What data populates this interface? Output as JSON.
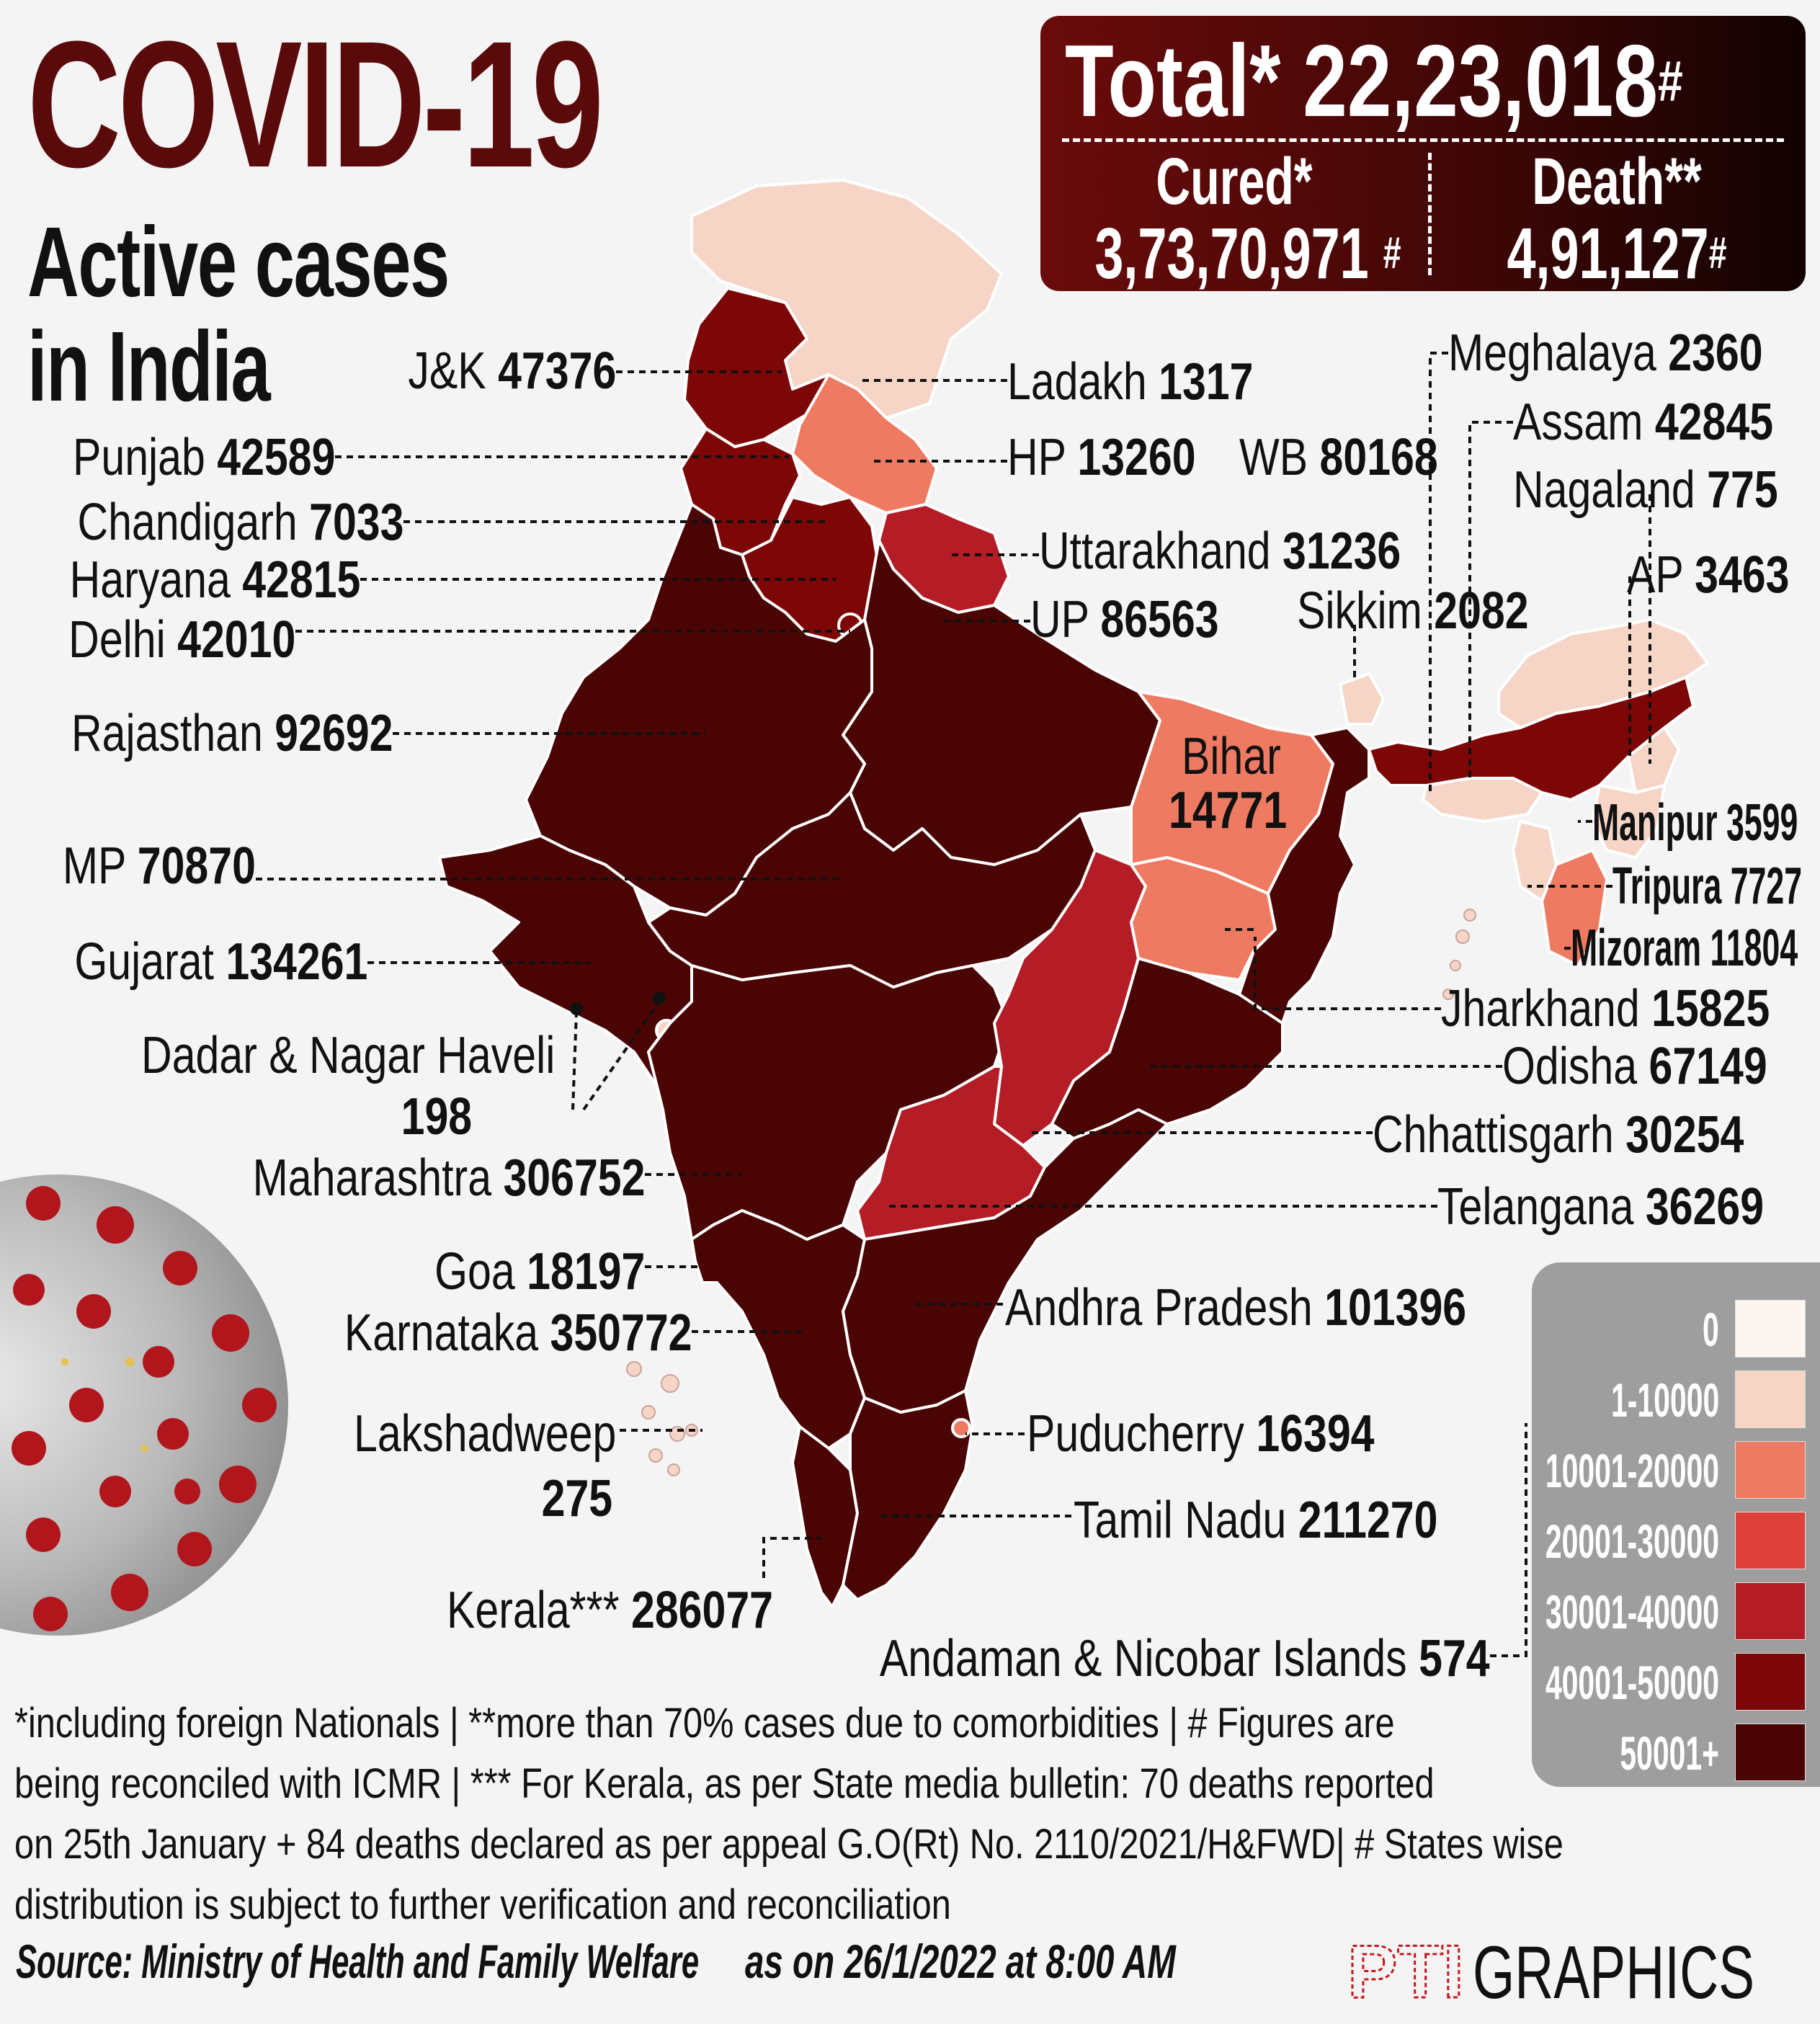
{
  "header": {
    "title": "COVID-19",
    "subtitle_line1": "Active cases",
    "subtitle_line2": "in India"
  },
  "totals": {
    "total_label": "Total*",
    "total_value": "22,23,018",
    "total_mark": "#",
    "cured_label": "Cured*",
    "cured_value": "3,73,70,971",
    "cured_mark": "#",
    "death_label": "Death**",
    "death_value": "4,91,127",
    "death_mark": "#"
  },
  "regions": [
    {
      "id": "jk",
      "name": "J&K",
      "value": "47376",
      "bucket": "40001-50000"
    },
    {
      "id": "ladakh",
      "name": "Ladakh",
      "value": "1317",
      "bucket": "1-10000"
    },
    {
      "id": "punjab",
      "name": "Punjab",
      "value": "42589",
      "bucket": "40001-50000"
    },
    {
      "id": "hp",
      "name": "HP",
      "value": "13260",
      "bucket": "10001-20000"
    },
    {
      "id": "wb",
      "name": "WB",
      "value": "80168",
      "bucket": "50001+"
    },
    {
      "id": "chandigarh",
      "name": "Chandigarh",
      "value": "7033",
      "bucket": "1-10000"
    },
    {
      "id": "haryana",
      "name": "Haryana",
      "value": "42815",
      "bucket": "40001-50000"
    },
    {
      "id": "uttarakhand",
      "name": "Uttarakhand",
      "value": "31236",
      "bucket": "30001-40000"
    },
    {
      "id": "delhi",
      "name": "Delhi",
      "value": "42010",
      "bucket": "40001-50000"
    },
    {
      "id": "up",
      "name": "UP",
      "value": "86563",
      "bucket": "50001+"
    },
    {
      "id": "rajasthan",
      "name": "Rajasthan",
      "value": "92692",
      "bucket": "50001+"
    },
    {
      "id": "mp",
      "name": "MP",
      "value": "70870",
      "bucket": "50001+"
    },
    {
      "id": "gujarat",
      "name": "Gujarat",
      "value": "134261",
      "bucket": "50001+"
    },
    {
      "id": "dnh",
      "name": "Dadar & Nagar Haveli",
      "value": "198",
      "bucket": "1-10000"
    },
    {
      "id": "maharashtra",
      "name": "Maharashtra",
      "value": "306752",
      "bucket": "50001+"
    },
    {
      "id": "goa",
      "name": "Goa",
      "value": "18197",
      "bucket": "10001-20000"
    },
    {
      "id": "karnataka",
      "name": "Karnataka",
      "value": "350772",
      "bucket": "50001+"
    },
    {
      "id": "lakshadweep",
      "name": "Lakshadweep",
      "value": "275",
      "bucket": "1-10000"
    },
    {
      "id": "kerala",
      "name": "Kerala***",
      "value": "286077",
      "bucket": "50001+"
    },
    {
      "id": "meghalaya",
      "name": "Meghalaya",
      "value": "2360",
      "bucket": "1-10000"
    },
    {
      "id": "assam",
      "name": "Assam",
      "value": "42845",
      "bucket": "40001-50000"
    },
    {
      "id": "nagaland",
      "name": "Nagaland",
      "value": "775",
      "bucket": "1-10000"
    },
    {
      "id": "ap_arunachal",
      "name": "AP",
      "value": "3463",
      "bucket": "1-10000"
    },
    {
      "id": "sikkim",
      "name": "Sikkim",
      "value": "2082",
      "bucket": "1-10000"
    },
    {
      "id": "bihar",
      "name": "Bihar",
      "value": "14771",
      "bucket": "10001-20000"
    },
    {
      "id": "manipur",
      "name": "Manipur",
      "value": "3599",
      "bucket": "1-10000"
    },
    {
      "id": "tripura",
      "name": "Tripura",
      "value": "7727",
      "bucket": "1-10000"
    },
    {
      "id": "mizoram",
      "name": "Mizoram",
      "value": "11804",
      "bucket": "10001-20000"
    },
    {
      "id": "jharkhand",
      "name": "Jharkhand",
      "value": "15825",
      "bucket": "10001-20000"
    },
    {
      "id": "odisha",
      "name": "Odisha",
      "value": "67149",
      "bucket": "50001+"
    },
    {
      "id": "chhattisgarh",
      "name": "Chhattisgarh",
      "value": "30254",
      "bucket": "30001-40000"
    },
    {
      "id": "telangana",
      "name": "Telangana",
      "value": "36269",
      "bucket": "30001-40000"
    },
    {
      "id": "andhra",
      "name": "Andhra Pradesh",
      "value": "101396",
      "bucket": "50001+"
    },
    {
      "id": "puducherry",
      "name": "Puducherry",
      "value": "16394",
      "bucket": "10001-20000"
    },
    {
      "id": "tamilnadu",
      "name": "Tamil Nadu",
      "value": "211270",
      "bucket": "50001+"
    },
    {
      "id": "andaman",
      "name": "Andaman & Nicobar Islands",
      "value": "574",
      "bucket": "1-10000"
    }
  ],
  "legend": [
    {
      "label": "0",
      "color": "#fdf5f2"
    },
    {
      "label": "1-10000",
      "color": "#f6d5c6"
    },
    {
      "label": "10001-20000",
      "color": "#ef7a62"
    },
    {
      "label": "20001-30000",
      "color": "#e0403a"
    },
    {
      "label": "30001-40000",
      "color": "#b41c26"
    },
    {
      "label": "40001-50000",
      "color": "#7d0707"
    },
    {
      "label": "50001+",
      "color": "#4a0404"
    }
  ],
  "footnotes": {
    "line1": "*including foreign Nationals | **more than 70% cases due to comorbidities | # Figures are",
    "line2": "being reconciled with ICMR  | *** For Kerala, as per State media bulletin: 70 deaths reported",
    "line3": "on 25th January + 84 deaths declared as per appeal G.O(Rt) No. 2110/2021/H&FWD| # States wise",
    "line4": "distribution is subject to further verification and reconciliation"
  },
  "source": "Source: Ministry of Health and Family Welfare",
  "as_of": "as on 26/1/2022 at 8:00 AM",
  "brand": {
    "logo_text": "PTI",
    "name": "GRAPHICS"
  },
  "colors": {
    "title": "#5a0a0a",
    "accent": "#4a0404"
  }
}
